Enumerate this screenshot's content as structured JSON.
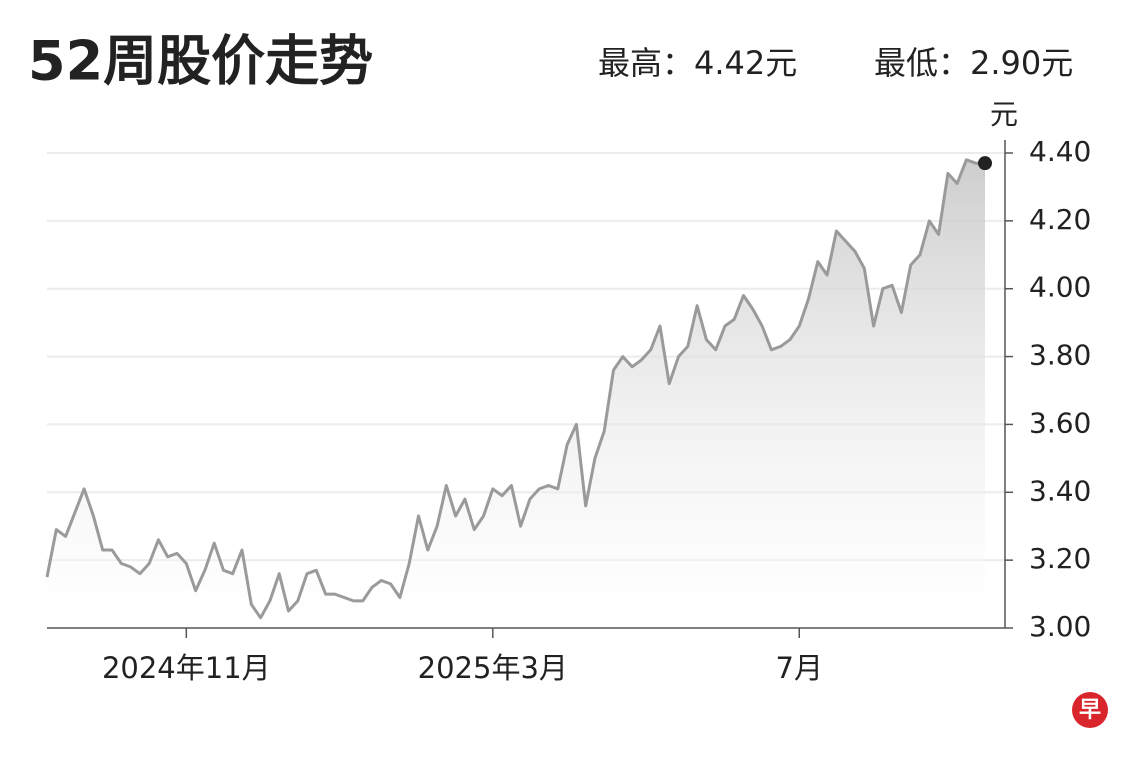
{
  "chart_data": {
    "type": "line",
    "title": "52周股价走势",
    "annotations": [
      "最高：4.42元",
      "最低：2.90元"
    ],
    "y_unit": "元",
    "logo": "早",
    "categories": [
      null,
      null,
      null,
      null,
      null,
      null,
      null,
      null,
      null,
      null,
      null,
      null,
      null,
      null,
      null,
      "2024年11月",
      null,
      null,
      null,
      null,
      null,
      null,
      null,
      null,
      null,
      null,
      null,
      null,
      null,
      null,
      null,
      null,
      null,
      null,
      null,
      null,
      null,
      null,
      null,
      null,
      null,
      null,
      null,
      null,
      null,
      null,
      null,
      null,
      "2025年3月",
      null,
      null,
      null,
      null,
      null,
      null,
      null,
      null,
      null,
      null,
      null,
      null,
      null,
      null,
      null,
      null,
      null,
      null,
      null,
      null,
      null,
      null,
      null,
      null,
      null,
      null,
      null,
      null,
      null,
      null,
      null,
      null,
      "7月",
      null,
      null,
      null,
      null,
      null,
      null,
      null,
      null,
      null,
      null,
      null,
      null,
      null,
      null,
      null,
      null,
      null,
      null,
      null,
      null
    ],
    "values": [
      3.15,
      3.29,
      3.27,
      3.34,
      3.41,
      3.33,
      3.23,
      3.23,
      3.19,
      3.18,
      3.16,
      3.19,
      3.26,
      3.21,
      3.22,
      3.19,
      3.11,
      3.17,
      3.25,
      3.17,
      3.16,
      3.23,
      3.07,
      3.03,
      3.08,
      3.16,
      3.05,
      3.08,
      3.16,
      3.17,
      3.1,
      3.1,
      3.09,
      3.08,
      3.08,
      3.12,
      3.14,
      3.13,
      3.09,
      3.19,
      3.33,
      3.23,
      3.3,
      3.42,
      3.33,
      3.38,
      3.29,
      3.33,
      3.41,
      3.39,
      3.42,
      3.3,
      3.38,
      3.41,
      3.42,
      3.41,
      3.54,
      3.6,
      3.36,
      3.5,
      3.58,
      3.76,
      3.8,
      3.77,
      3.79,
      3.82,
      3.89,
      3.72,
      3.8,
      3.83,
      3.95,
      3.85,
      3.82,
      3.89,
      3.91,
      3.98,
      3.94,
      3.89,
      3.82,
      3.83,
      3.85,
      3.89,
      3.97,
      4.08,
      4.04,
      4.17,
      4.14,
      4.11,
      4.06,
      3.89,
      4.0,
      4.01,
      3.93,
      4.07,
      4.1,
      4.2,
      4.16,
      4.34,
      4.31,
      4.38,
      4.37,
      4.37
    ],
    "color": "#9a9a9a",
    "ylim": [
      3.0,
      4.44
    ],
    "yticks": [
      {
        "value": 3.0,
        "label": "3.00"
      },
      {
        "value": 3.2,
        "label": "3.20"
      },
      {
        "value": 3.4,
        "label": "3.40"
      },
      {
        "value": 3.6,
        "label": "3.60"
      },
      {
        "value": 3.8,
        "label": "3.80"
      },
      {
        "value": 4.0,
        "label": "4.00"
      },
      {
        "value": 4.2,
        "label": "4.20"
      },
      {
        "value": 4.4,
        "label": "4.40"
      }
    ],
    "grid": true
  }
}
